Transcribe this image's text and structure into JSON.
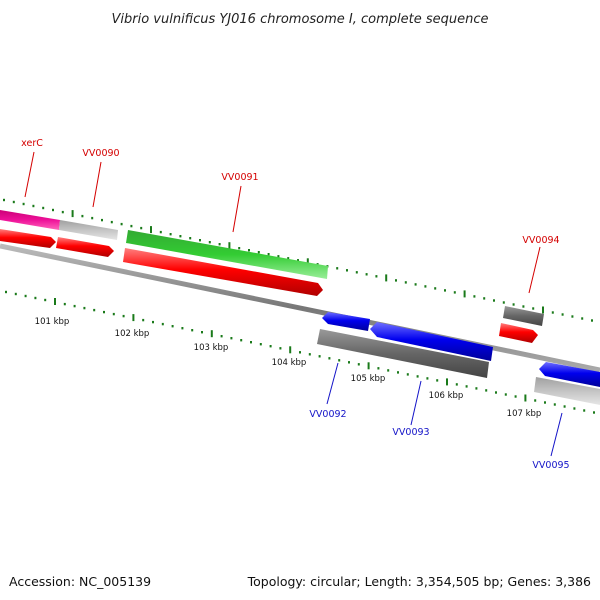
{
  "title": "Vibrio vulnificus YJ016 chromosome I, complete sequence",
  "footer": {
    "accession": "Accession: NC_005139",
    "stats": "Topology: circular; Length: 3,354,505 bp; Genes: 3,386"
  },
  "kbp_ticks": [
    "101 kbp",
    "102 kbp",
    "103 kbp",
    "104 kbp",
    "105 kbp",
    "106 kbp",
    "107 kbp"
  ],
  "genes": {
    "forward": [
      "xerC",
      "VV0090",
      "VV0091",
      "VV0094"
    ],
    "reverse": [
      "VV0092",
      "VV0093",
      "VV0095"
    ]
  },
  "colors": {
    "forward_label": "#d40000",
    "reverse_label": "#1414c8",
    "tick": "#1a7a1a",
    "backbone": "#808080",
    "red": "#ff0000",
    "blue": "#0000ee",
    "green": "#33cc33",
    "magenta": "#ee1199",
    "gray_dark": "#666666",
    "gray_light": "#c4c4c4"
  }
}
